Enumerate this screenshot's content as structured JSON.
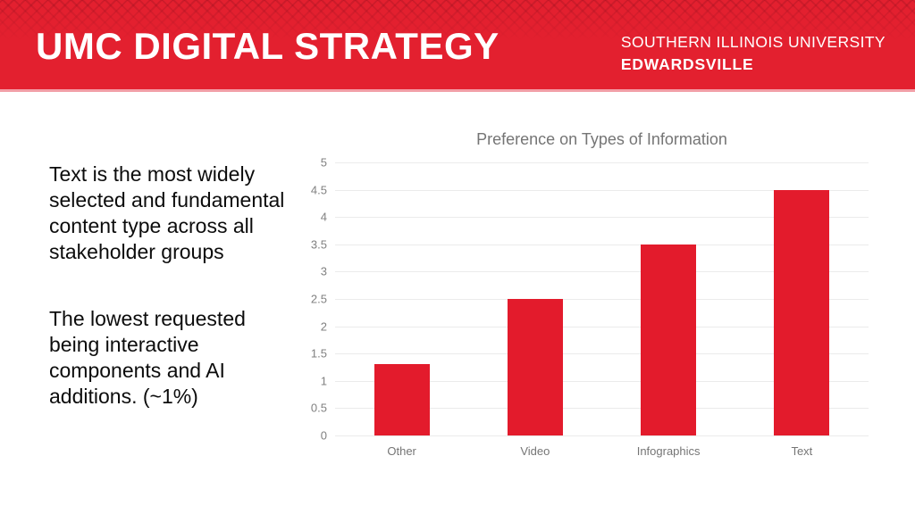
{
  "header": {
    "title": "UMC DIGITAL STRATEGY",
    "university_line1": "SOUTHERN ILLINOIS UNIVERSITY",
    "university_line2": "EDWARDSVILLE",
    "background_color": "#E3202F",
    "text_color": "#FFFFFF"
  },
  "insights": {
    "paragraph1": "Text is the most widely selected and fundamental content type across all stakeholder groups",
    "paragraph2": "The lowest requested being interactive components and AI additions. (~1%)"
  },
  "chart_data": {
    "type": "bar",
    "title": "Preference on Types of Information",
    "categories": [
      "Other",
      "Video",
      "Infographics",
      "Text"
    ],
    "values": [
      1.3,
      2.5,
      3.5,
      4.5
    ],
    "xlabel": "",
    "ylabel": "",
    "ylim": [
      0,
      5
    ],
    "ytick_step": 0.5,
    "grid": true,
    "legend": false,
    "bar_color": "#E31B2C",
    "title_color": "#757575",
    "axis_label_color": "#808080",
    "gridline_color": "#EBEBEB"
  }
}
